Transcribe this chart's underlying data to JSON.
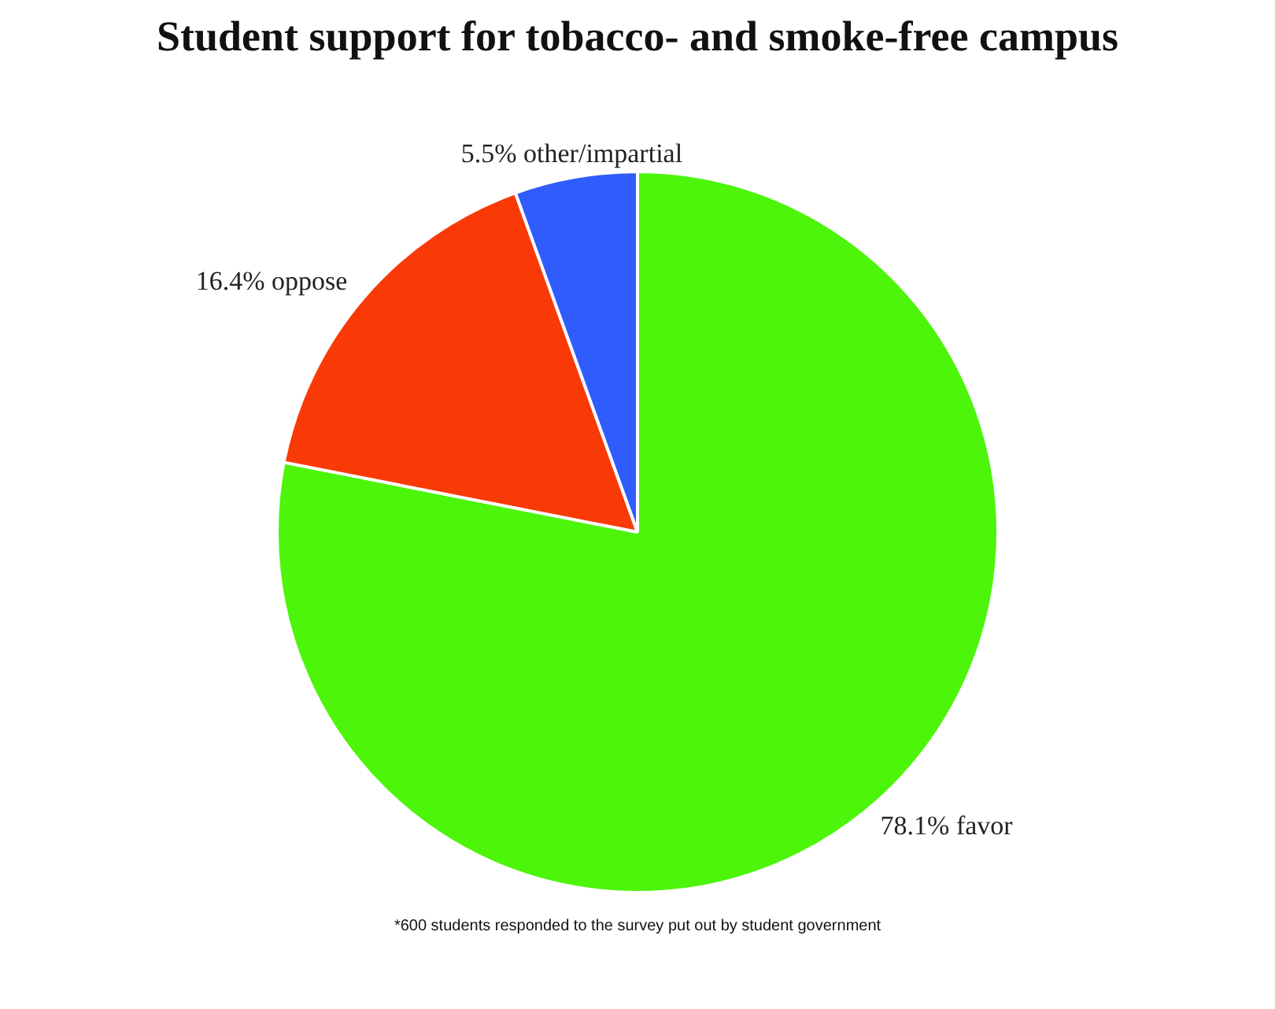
{
  "chart_data": {
    "type": "pie",
    "title": "Student support for tobacco- and smoke-free campus",
    "categories": [
      "favor",
      "oppose",
      "other/impartial"
    ],
    "values": [
      78.1,
      16.4,
      5.5
    ],
    "value_labels": [
      "78.1%",
      "16.4%",
      "5.5%"
    ],
    "colors": [
      "#4cf50a",
      "#fa3a06",
      "#2f5cfb"
    ],
    "legend": false,
    "annotations": [
      "*600 students responded to the survey put out by student government"
    ]
  }
}
